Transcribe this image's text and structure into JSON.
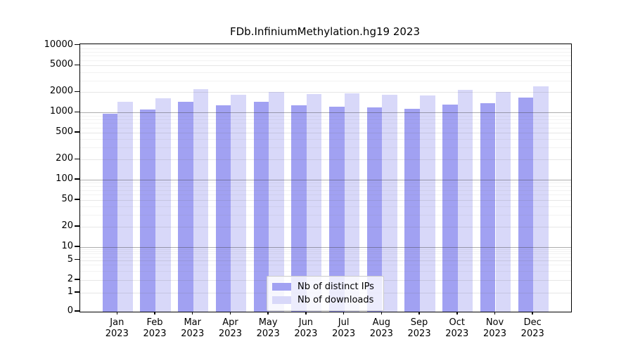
{
  "chart_data": {
    "type": "bar",
    "title": "FDb.InfiniumMethylation.hg19 2023",
    "categories": [
      "Jan",
      "Feb",
      "Mar",
      "Apr",
      "May",
      "Jun",
      "Jul",
      "Aug",
      "Sep",
      "Oct",
      "Nov",
      "Dec"
    ],
    "year": "2023",
    "series": [
      {
        "name": "Nb of distinct IPs",
        "color": "#a1a1f2",
        "values": [
          950,
          1100,
          1460,
          1270,
          1440,
          1280,
          1230,
          1180,
          1140,
          1320,
          1380,
          1680
        ]
      },
      {
        "name": "Nb of downloads",
        "color": "#d8d8f9",
        "values": [
          1430,
          1620,
          2250,
          1840,
          2010,
          1900,
          1940,
          1840,
          1800,
          2190,
          2010,
          2470
        ]
      }
    ],
    "yscale": "symlog",
    "y_ticks": [
      10000,
      5000,
      2000,
      1000,
      500,
      200,
      100,
      50,
      20,
      10,
      5,
      2,
      1,
      0
    ],
    "ylim": [
      0,
      10000
    ],
    "grid": true,
    "legend_position": "lower center",
    "axis_color": "#000000",
    "background_color": "#ffffff"
  }
}
